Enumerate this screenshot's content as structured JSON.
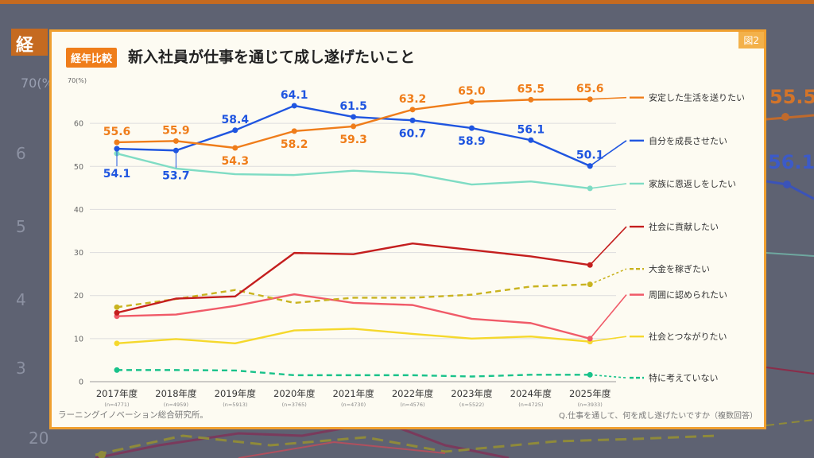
{
  "header": {
    "tag": "経年比較",
    "title": "新入社員が仕事を通じて成し遂げたいこと",
    "figure_label": "図2"
  },
  "footer": {
    "source": "ラーニングイノベーション総合研究所。",
    "question": "Q.仕事を通して、何を成し遂げたいですか（複数回答）"
  },
  "background": {
    "fragments": [
      "経",
      "70(%",
      "6",
      "5",
      "4",
      "3",
      "20",
      "55.5",
      "56.1"
    ]
  },
  "chart_data": {
    "type": "line",
    "y_unit_label": "70(%)",
    "ylim": [
      0,
      70
    ],
    "yticks": [
      0,
      10,
      20,
      30,
      40,
      50,
      60
    ],
    "grid": true,
    "legend_placement": "right",
    "categories": [
      "2017年度",
      "2018年度",
      "2019年度",
      "2020年度",
      "2021年度",
      "2022年度",
      "2023年度",
      "2024年度",
      "2025年度"
    ],
    "sample_sizes": [
      "(n=4771)",
      "(n=4959)",
      "(n=5913)",
      "(n=3765)",
      "(n=4730)",
      "(n=4576)",
      "(n=5522)",
      "(n=4725)",
      "(n=3933)"
    ],
    "series": [
      {
        "name": "安定した生活を送りたい",
        "color": "#ef7d1a",
        "dash": false,
        "values": [
          55.6,
          55.9,
          54.3,
          58.2,
          59.3,
          63.2,
          65.0,
          65.5,
          65.6
        ],
        "labels": [
          "55.6",
          "55.9",
          "54.3",
          "58.2",
          "59.3",
          "63.2",
          "65.0",
          "65.5",
          "65.6"
        ],
        "label_dir": [
          "up",
          "up",
          "down",
          "down",
          "down",
          "up",
          "up",
          "up",
          "up"
        ],
        "legend_y": 66
      },
      {
        "name": "自分を成長させたい",
        "color": "#1f55e0",
        "dash": false,
        "values": [
          54.1,
          53.7,
          58.4,
          64.1,
          61.5,
          60.7,
          58.9,
          56.1,
          50.1
        ],
        "labels": [
          "54.1",
          "53.7",
          "58.4",
          "64.1",
          "61.5",
          "60.7",
          "58.9",
          "56.1",
          "50.1"
        ],
        "label_dir": [
          "down2",
          "down2",
          "up",
          "up",
          "up",
          "down",
          "down",
          "up",
          "up"
        ],
        "legend_y": 56
      },
      {
        "name": "家族に恩返しをしたい",
        "color": "#7fdcc4",
        "dash": false,
        "values": [
          53.0,
          49.5,
          48.2,
          48.0,
          49.0,
          48.3,
          45.8,
          46.5,
          44.9
        ],
        "legend_y": 46
      },
      {
        "name": "社会に貢献したい",
        "color": "#c41e1e",
        "dash": false,
        "values": [
          16.0,
          19.3,
          19.8,
          29.9,
          29.6,
          32.1,
          30.6,
          29.1,
          27.1
        ],
        "legend_y": 36
      },
      {
        "name": "大金を稼ぎたい",
        "color": "#c9b31f",
        "dash": true,
        "values": [
          17.3,
          19.2,
          21.3,
          18.3,
          19.5,
          19.5,
          20.2,
          22.1,
          22.6
        ],
        "legend_y": 26.2
      },
      {
        "name": "周囲に認められたい",
        "color": "#f05a68",
        "dash": false,
        "values": [
          15.2,
          15.6,
          17.6,
          20.3,
          18.3,
          17.8,
          14.6,
          13.6,
          10.0
        ],
        "legend_y": 20.2
      },
      {
        "name": "社会とつながりたい",
        "color": "#f5d82c",
        "dash": false,
        "values": [
          8.9,
          9.9,
          8.9,
          11.9,
          12.3,
          11.1,
          10.0,
          10.5,
          9.3
        ],
        "legend_y": 10.5
      },
      {
        "name": "特に考えていない",
        "color": "#19c28a",
        "dash": true,
        "values": [
          2.7,
          2.7,
          2.6,
          1.5,
          1.5,
          1.5,
          1.2,
          1.6,
          1.6
        ],
        "legend_y": 0.9
      }
    ]
  }
}
